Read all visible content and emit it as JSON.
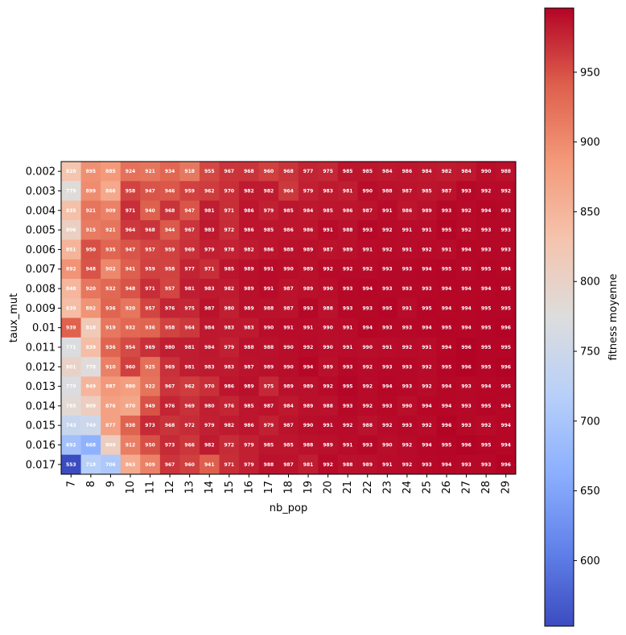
{
  "chart_data": {
    "type": "heatmap",
    "title": "",
    "xlabel": "nb_pop",
    "ylabel": "taux_mut",
    "x_categories": [
      "7",
      "8",
      "9",
      "10",
      "11",
      "12",
      "13",
      "14",
      "15",
      "16",
      "17",
      "18",
      "19",
      "20",
      "21",
      "22",
      "23",
      "24",
      "25",
      "26",
      "27",
      "28",
      "29"
    ],
    "y_categories": [
      "0.002",
      "0.003",
      "0.004",
      "0.005",
      "0.006",
      "0.007",
      "0.008",
      "0.009",
      "0.01",
      "0.011",
      "0.012",
      "0.013",
      "0.014",
      "0.015",
      "0.016",
      "0.017"
    ],
    "values": [
      [
        828,
        895,
        885,
        924,
        921,
        934,
        918,
        955,
        967,
        968,
        960,
        968,
        977,
        975,
        985,
        985,
        984,
        986,
        984,
        982,
        984,
        990,
        988
      ],
      [
        779,
        899,
        866,
        958,
        947,
        946,
        959,
        962,
        970,
        982,
        982,
        964,
        979,
        983,
        981,
        990,
        988,
        987,
        985,
        987,
        993,
        992,
        992
      ],
      [
        835,
        921,
        909,
        971,
        940,
        968,
        947,
        981,
        971,
        986,
        979,
        985,
        984,
        985,
        986,
        987,
        991,
        986,
        989,
        993,
        992,
        994,
        993
      ],
      [
        806,
        915,
        921,
        964,
        968,
        944,
        967,
        983,
        972,
        986,
        985,
        986,
        986,
        991,
        988,
        993,
        992,
        991,
        991,
        995,
        992,
        993,
        993
      ],
      [
        851,
        950,
        935,
        947,
        957,
        959,
        969,
        979,
        978,
        982,
        986,
        988,
        989,
        987,
        989,
        991,
        992,
        991,
        992,
        991,
        994,
        993,
        993
      ],
      [
        892,
        948,
        902,
        941,
        959,
        958,
        977,
        971,
        985,
        989,
        991,
        990,
        989,
        992,
        992,
        992,
        993,
        993,
        994,
        995,
        993,
        995,
        994
      ],
      [
        848,
        920,
        932,
        948,
        971,
        957,
        981,
        983,
        982,
        989,
        991,
        987,
        989,
        990,
        993,
        994,
        993,
        993,
        993,
        994,
        994,
        994,
        995
      ],
      [
        839,
        892,
        936,
        920,
        957,
        976,
        975,
        987,
        980,
        989,
        988,
        987,
        993,
        988,
        993,
        993,
        995,
        991,
        995,
        994,
        994,
        995,
        995
      ],
      [
        939,
        818,
        919,
        932,
        936,
        958,
        964,
        984,
        983,
        983,
        990,
        991,
        991,
        990,
        991,
        994,
        993,
        993,
        994,
        995,
        994,
        995,
        996
      ],
      [
        771,
        839,
        936,
        954,
        969,
        980,
        981,
        984,
        979,
        988,
        988,
        990,
        992,
        990,
        991,
        990,
        991,
        992,
        991,
        994,
        996,
        995,
        995
      ],
      [
        801,
        778,
        910,
        960,
        925,
        969,
        981,
        983,
        983,
        987,
        989,
        990,
        994,
        989,
        993,
        992,
        993,
        993,
        992,
        995,
        996,
        995,
        996
      ],
      [
        770,
        849,
        887,
        880,
        922,
        967,
        962,
        970,
        986,
        989,
        975,
        989,
        989,
        992,
        995,
        992,
        994,
        993,
        992,
        994,
        993,
        994,
        995
      ],
      [
        785,
        809,
        876,
        870,
        949,
        976,
        969,
        980,
        976,
        985,
        987,
        984,
        989,
        988,
        993,
        992,
        993,
        990,
        994,
        994,
        993,
        995,
        994
      ],
      [
        743,
        749,
        877,
        938,
        973,
        968,
        972,
        979,
        982,
        986,
        979,
        987,
        990,
        991,
        992,
        988,
        992,
        993,
        992,
        996,
        993,
        992,
        994
      ],
      [
        692,
        668,
        809,
        912,
        950,
        973,
        966,
        982,
        972,
        979,
        985,
        985,
        988,
        989,
        991,
        993,
        990,
        992,
        994,
        995,
        996,
        995,
        994
      ],
      [
        553,
        718,
        706,
        863,
        909,
        967,
        960,
        941,
        971,
        979,
        988,
        987,
        981,
        992,
        988,
        989,
        991,
        992,
        993,
        994,
        993,
        993,
        996
      ]
    ],
    "colormap": "coolwarm",
    "vmin": 553,
    "vmax": 996,
    "colorbar": {
      "label": "fitness moyenne",
      "ticks": [
        600,
        650,
        700,
        750,
        800,
        850,
        900,
        950
      ]
    }
  }
}
